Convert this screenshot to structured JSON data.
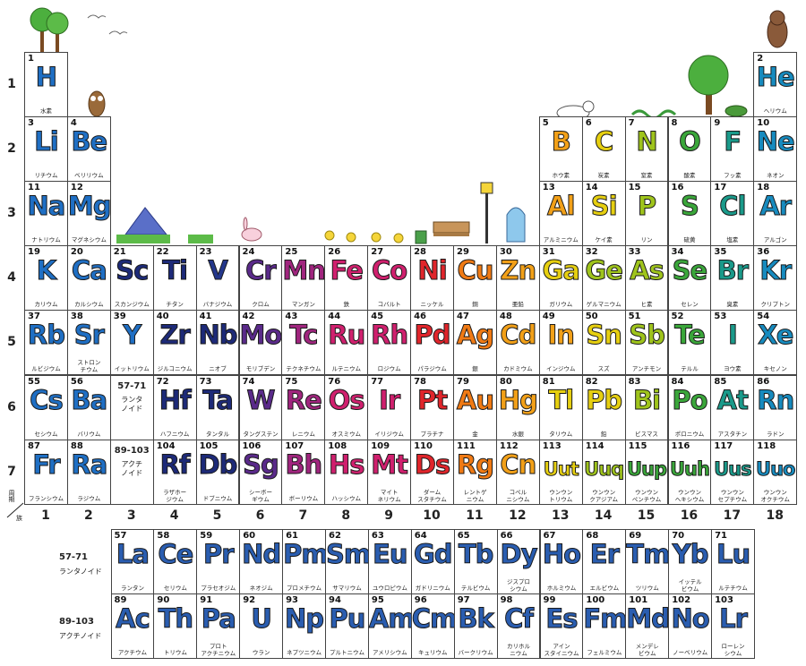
{
  "colors": {
    "blue": "#1f6fc4",
    "navy": "#1d2a78",
    "navy2": "#24378c",
    "purple": "#5a2a8a",
    "magenta": "#a0257e",
    "pink": "#d0206e",
    "red": "#e0252b",
    "orange": "#f07a14",
    "amber": "#f2a018",
    "yellow": "#e6cf10",
    "lime": "#9fc41c",
    "green": "#3aa63a",
    "teal": "#1a9a8a",
    "cyan": "#178bbf",
    "fblue": "#2a5db0",
    "border": "#444444"
  },
  "period_labels": [
    "1",
    "2",
    "3",
    "4",
    "5",
    "6",
    "7"
  ],
  "group_labels": [
    "1",
    "2",
    "3",
    "4",
    "5",
    "6",
    "7",
    "8",
    "9",
    "10",
    "11",
    "12",
    "13",
    "14",
    "15",
    "16",
    "17",
    "18"
  ],
  "corner": {
    "top": "周期",
    "bottom": "族"
  },
  "elements": [
    {
      "n": "1",
      "s": "H",
      "jp": "水素",
      "c": "blue",
      "p": 1,
      "g": 1
    },
    {
      "n": "2",
      "s": "He",
      "jp": "ヘリウム",
      "c": "cyan",
      "p": 1,
      "g": 18
    },
    {
      "n": "3",
      "s": "Li",
      "jp": "リチウム",
      "c": "blue",
      "p": 2,
      "g": 1
    },
    {
      "n": "4",
      "s": "Be",
      "jp": "ベリリウム",
      "c": "blue",
      "p": 2,
      "g": 2
    },
    {
      "n": "5",
      "s": "B",
      "jp": "ホウ素",
      "c": "amber",
      "p": 2,
      "g": 13
    },
    {
      "n": "6",
      "s": "C",
      "jp": "炭素",
      "c": "yellow",
      "p": 2,
      "g": 14
    },
    {
      "n": "7",
      "s": "N",
      "jp": "窒素",
      "c": "lime",
      "p": 2,
      "g": 15
    },
    {
      "n": "8",
      "s": "O",
      "jp": "酸素",
      "c": "green",
      "p": 2,
      "g": 16
    },
    {
      "n": "9",
      "s": "F",
      "jp": "フッ素",
      "c": "teal",
      "p": 2,
      "g": 17
    },
    {
      "n": "10",
      "s": "Ne",
      "jp": "ネオン",
      "c": "cyan",
      "p": 2,
      "g": 18
    },
    {
      "n": "11",
      "s": "Na",
      "jp": "ナトリウム",
      "c": "blue",
      "p": 3,
      "g": 1
    },
    {
      "n": "12",
      "s": "Mg",
      "jp": "マグネシウム",
      "c": "blue",
      "p": 3,
      "g": 2
    },
    {
      "n": "13",
      "s": "Al",
      "jp": "アルミニウム",
      "c": "amber",
      "p": 3,
      "g": 13
    },
    {
      "n": "14",
      "s": "Si",
      "jp": "ケイ素",
      "c": "yellow",
      "p": 3,
      "g": 14
    },
    {
      "n": "15",
      "s": "P",
      "jp": "リン",
      "c": "lime",
      "p": 3,
      "g": 15
    },
    {
      "n": "16",
      "s": "S",
      "jp": "硫黄",
      "c": "green",
      "p": 3,
      "g": 16
    },
    {
      "n": "17",
      "s": "Cl",
      "jp": "塩素",
      "c": "teal",
      "p": 3,
      "g": 17
    },
    {
      "n": "18",
      "s": "Ar",
      "jp": "アルゴン",
      "c": "cyan",
      "p": 3,
      "g": 18
    },
    {
      "n": "19",
      "s": "K",
      "jp": "カリウム",
      "c": "blue",
      "p": 4,
      "g": 1
    },
    {
      "n": "20",
      "s": "Ca",
      "jp": "カルシウム",
      "c": "blue",
      "p": 4,
      "g": 2
    },
    {
      "n": "21",
      "s": "Sc",
      "jp": "スカンジウム",
      "c": "navy",
      "p": 4,
      "g": 3
    },
    {
      "n": "22",
      "s": "Ti",
      "jp": "チタン",
      "c": "navy",
      "p": 4,
      "g": 4
    },
    {
      "n": "23",
      "s": "V",
      "jp": "バナジウム",
      "c": "navy2",
      "p": 4,
      "g": 5
    },
    {
      "n": "24",
      "s": "Cr",
      "jp": "クロム",
      "c": "purple",
      "p": 4,
      "g": 6
    },
    {
      "n": "25",
      "s": "Mn",
      "jp": "マンガン",
      "c": "magenta",
      "p": 4,
      "g": 7
    },
    {
      "n": "26",
      "s": "Fe",
      "jp": "鉄",
      "c": "pink",
      "p": 4,
      "g": 8
    },
    {
      "n": "27",
      "s": "Co",
      "jp": "コバルト",
      "c": "pink",
      "p": 4,
      "g": 9
    },
    {
      "n": "28",
      "s": "Ni",
      "jp": "ニッケル",
      "c": "red",
      "p": 4,
      "g": 10
    },
    {
      "n": "29",
      "s": "Cu",
      "jp": "銅",
      "c": "orange",
      "p": 4,
      "g": 11
    },
    {
      "n": "30",
      "s": "Zn",
      "jp": "亜鉛",
      "c": "amber",
      "p": 4,
      "g": 12
    },
    {
      "n": "31",
      "s": "Ga",
      "jp": "ガリウム",
      "c": "yellow",
      "p": 4,
      "g": 13
    },
    {
      "n": "32",
      "s": "Ge",
      "jp": "ゲルマニウム",
      "c": "lime",
      "p": 4,
      "g": 14
    },
    {
      "n": "33",
      "s": "As",
      "jp": "ヒ素",
      "c": "lime",
      "p": 4,
      "g": 15
    },
    {
      "n": "34",
      "s": "Se",
      "jp": "セレン",
      "c": "green",
      "p": 4,
      "g": 16
    },
    {
      "n": "35",
      "s": "Br",
      "jp": "臭素",
      "c": "teal",
      "p": 4,
      "g": 17
    },
    {
      "n": "36",
      "s": "Kr",
      "jp": "クリプトン",
      "c": "cyan",
      "p": 4,
      "g": 18
    },
    {
      "n": "37",
      "s": "Rb",
      "jp": "ルビジウム",
      "c": "blue",
      "p": 5,
      "g": 1
    },
    {
      "n": "38",
      "s": "Sr",
      "jp": "ストロン\nチウム",
      "c": "blue",
      "p": 5,
      "g": 2
    },
    {
      "n": "39",
      "s": "Y",
      "jp": "イットリウム",
      "c": "blue",
      "p": 5,
      "g": 3
    },
    {
      "n": "40",
      "s": "Zr",
      "jp": "ジルコニウム",
      "c": "navy",
      "p": 5,
      "g": 4
    },
    {
      "n": "41",
      "s": "Nb",
      "jp": "ニオブ",
      "c": "navy",
      "p": 5,
      "g": 5
    },
    {
      "n": "42",
      "s": "Mo",
      "jp": "モリブデン",
      "c": "purple",
      "p": 5,
      "g": 6
    },
    {
      "n": "43",
      "s": "Tc",
      "jp": "テクネチウム",
      "c": "magenta",
      "p": 5,
      "g": 7
    },
    {
      "n": "44",
      "s": "Ru",
      "jp": "ルテニウム",
      "c": "pink",
      "p": 5,
      "g": 8
    },
    {
      "n": "45",
      "s": "Rh",
      "jp": "ロジウム",
      "c": "pink",
      "p": 5,
      "g": 9
    },
    {
      "n": "46",
      "s": "Pd",
      "jp": "パラジウム",
      "c": "red",
      "p": 5,
      "g": 10
    },
    {
      "n": "47",
      "s": "Ag",
      "jp": "銀",
      "c": "orange",
      "p": 5,
      "g": 11
    },
    {
      "n": "48",
      "s": "Cd",
      "jp": "カドミウム",
      "c": "amber",
      "p": 5,
      "g": 12
    },
    {
      "n": "49",
      "s": "In",
      "jp": "インジウム",
      "c": "amber",
      "p": 5,
      "g": 13
    },
    {
      "n": "50",
      "s": "Sn",
      "jp": "スズ",
      "c": "yellow",
      "p": 5,
      "g": 14
    },
    {
      "n": "51",
      "s": "Sb",
      "jp": "アンチモン",
      "c": "lime",
      "p": 5,
      "g": 15
    },
    {
      "n": "52",
      "s": "Te",
      "jp": "テルル",
      "c": "green",
      "p": 5,
      "g": 16
    },
    {
      "n": "53",
      "s": "I",
      "jp": "ヨウ素",
      "c": "teal",
      "p": 5,
      "g": 17
    },
    {
      "n": "54",
      "s": "Xe",
      "jp": "キセノン",
      "c": "cyan",
      "p": 5,
      "g": 18
    },
    {
      "n": "55",
      "s": "Cs",
      "jp": "セシウム",
      "c": "blue",
      "p": 6,
      "g": 1
    },
    {
      "n": "56",
      "s": "Ba",
      "jp": "バリウム",
      "c": "blue",
      "p": 6,
      "g": 2
    },
    {
      "n": "72",
      "s": "Hf",
      "jp": "ハフニウム",
      "c": "navy",
      "p": 6,
      "g": 4
    },
    {
      "n": "73",
      "s": "Ta",
      "jp": "タンタル",
      "c": "navy",
      "p": 6,
      "g": 5
    },
    {
      "n": "74",
      "s": "W",
      "jp": "タングステン",
      "c": "purple",
      "p": 6,
      "g": 6
    },
    {
      "n": "75",
      "s": "Re",
      "jp": "レニウム",
      "c": "magenta",
      "p": 6,
      "g": 7
    },
    {
      "n": "76",
      "s": "Os",
      "jp": "オスミウム",
      "c": "pink",
      "p": 6,
      "g": 8
    },
    {
      "n": "77",
      "s": "Ir",
      "jp": "イリジウム",
      "c": "pink",
      "p": 6,
      "g": 9
    },
    {
      "n": "78",
      "s": "Pt",
      "jp": "プラチナ",
      "c": "red",
      "p": 6,
      "g": 10
    },
    {
      "n": "79",
      "s": "Au",
      "jp": "金",
      "c": "orange",
      "p": 6,
      "g": 11
    },
    {
      "n": "80",
      "s": "Hg",
      "jp": "水銀",
      "c": "amber",
      "p": 6,
      "g": 12
    },
    {
      "n": "81",
      "s": "Tl",
      "jp": "タリウム",
      "c": "yellow",
      "p": 6,
      "g": 13
    },
    {
      "n": "82",
      "s": "Pb",
      "jp": "鉛",
      "c": "yellow",
      "p": 6,
      "g": 14
    },
    {
      "n": "83",
      "s": "Bi",
      "jp": "ビスマス",
      "c": "lime",
      "p": 6,
      "g": 15
    },
    {
      "n": "84",
      "s": "Po",
      "jp": "ポロニウム",
      "c": "green",
      "p": 6,
      "g": 16
    },
    {
      "n": "85",
      "s": "At",
      "jp": "アスタチン",
      "c": "teal",
      "p": 6,
      "g": 17
    },
    {
      "n": "86",
      "s": "Rn",
      "jp": "ラドン",
      "c": "cyan",
      "p": 6,
      "g": 18
    },
    {
      "n": "87",
      "s": "Fr",
      "jp": "フランシウム",
      "c": "blue",
      "p": 7,
      "g": 1
    },
    {
      "n": "88",
      "s": "Ra",
      "jp": "ラジウム",
      "c": "blue",
      "p": 7,
      "g": 2
    },
    {
      "n": "104",
      "s": "Rf",
      "jp": "ラザホー\nジウム",
      "c": "navy",
      "p": 7,
      "g": 4
    },
    {
      "n": "105",
      "s": "Db",
      "jp": "ドブニウム",
      "c": "navy",
      "p": 7,
      "g": 5
    },
    {
      "n": "106",
      "s": "Sg",
      "jp": "シーボー\nギウム",
      "c": "purple",
      "p": 7,
      "g": 6
    },
    {
      "n": "107",
      "s": "Bh",
      "jp": "ボーリウム",
      "c": "magenta",
      "p": 7,
      "g": 7
    },
    {
      "n": "108",
      "s": "Hs",
      "jp": "ハッシウム",
      "c": "pink",
      "p": 7,
      "g": 8
    },
    {
      "n": "109",
      "s": "Mt",
      "jp": "マイト\nネリウム",
      "c": "pink",
      "p": 7,
      "g": 9
    },
    {
      "n": "110",
      "s": "Ds",
      "jp": "ダーム\nスタチウム",
      "c": "red",
      "p": 7,
      "g": 10
    },
    {
      "n": "111",
      "s": "Rg",
      "jp": "レントゲ\nニウム",
      "c": "orange",
      "p": 7,
      "g": 11
    },
    {
      "n": "112",
      "s": "Cn",
      "jp": "コペル\nニシウム",
      "c": "amber",
      "p": 7,
      "g": 12
    },
    {
      "n": "113",
      "s": "Uut",
      "jp": "ウンウン\nトリウム",
      "c": "yellow",
      "p": 7,
      "g": 13
    },
    {
      "n": "114",
      "s": "Uuq",
      "jp": "ウンウン\nクアジアム",
      "c": "lime",
      "p": 7,
      "g": 14
    },
    {
      "n": "115",
      "s": "Uup",
      "jp": "ウンウン\nペンチウム",
      "c": "green",
      "p": 7,
      "g": 15
    },
    {
      "n": "116",
      "s": "Uuh",
      "jp": "ウンウン\nヘキシウム",
      "c": "green",
      "p": 7,
      "g": 16
    },
    {
      "n": "117",
      "s": "Uus",
      "jp": "ウンウン\nセプチウム",
      "c": "teal",
      "p": 7,
      "g": 17
    },
    {
      "n": "118",
      "s": "Uuo",
      "jp": "ウンウン\nオクチウム",
      "c": "cyan",
      "p": 7,
      "g": 18
    }
  ],
  "refs": [
    {
      "range": "57-71",
      "name": "ランタ\nノイド",
      "p": 6,
      "g": 3
    },
    {
      "range": "89-103",
      "name": "アクチ\nノイド",
      "p": 7,
      "g": 3
    }
  ],
  "series": [
    {
      "range": "57-71",
      "name": "ランタノイド",
      "elements": [
        {
          "n": "57",
          "s": "La",
          "jp": "ランタン"
        },
        {
          "n": "58",
          "s": "Ce",
          "jp": "セリウム"
        },
        {
          "n": "59",
          "s": "Pr",
          "jp": "プラセオジム"
        },
        {
          "n": "60",
          "s": "Nd",
          "jp": "ネオジム"
        },
        {
          "n": "61",
          "s": "Pm",
          "jp": "プロメチウム"
        },
        {
          "n": "62",
          "s": "Sm",
          "jp": "サマリウム"
        },
        {
          "n": "63",
          "s": "Eu",
          "jp": "ユウロピウム"
        },
        {
          "n": "64",
          "s": "Gd",
          "jp": "ガドリニウム"
        },
        {
          "n": "65",
          "s": "Tb",
          "jp": "テルビウム"
        },
        {
          "n": "66",
          "s": "Dy",
          "jp": "ジスプロ\nシウム"
        },
        {
          "n": "67",
          "s": "Ho",
          "jp": "ホルミウム"
        },
        {
          "n": "68",
          "s": "Er",
          "jp": "エルビウム"
        },
        {
          "n": "69",
          "s": "Tm",
          "jp": "ツリウム"
        },
        {
          "n": "70",
          "s": "Yb",
          "jp": "イッテル\nビウム"
        },
        {
          "n": "71",
          "s": "Lu",
          "jp": "ルテチウム"
        }
      ]
    },
    {
      "range": "89-103",
      "name": "アクチノイド",
      "elements": [
        {
          "n": "89",
          "s": "Ac",
          "jp": "アクチウム"
        },
        {
          "n": "90",
          "s": "Th",
          "jp": "トリウム"
        },
        {
          "n": "91",
          "s": "Pa",
          "jp": "プロト\nアクチニウム"
        },
        {
          "n": "92",
          "s": "U",
          "jp": "ウラン"
        },
        {
          "n": "93",
          "s": "Np",
          "jp": "ネプツニウム"
        },
        {
          "n": "94",
          "s": "Pu",
          "jp": "プルトニウム"
        },
        {
          "n": "95",
          "s": "Am",
          "jp": "アメリシウム"
        },
        {
          "n": "96",
          "s": "Cm",
          "jp": "キュリウム"
        },
        {
          "n": "97",
          "s": "Bk",
          "jp": "バークリウム"
        },
        {
          "n": "98",
          "s": "Cf",
          "jp": "カリホル\nニウム"
        },
        {
          "n": "99",
          "s": "Es",
          "jp": "アイン\nスタイニウム"
        },
        {
          "n": "100",
          "s": "Fm",
          "jp": "フェルミウム"
        },
        {
          "n": "101",
          "s": "Md",
          "jp": "メンデレ\nビウム"
        },
        {
          "n": "102",
          "s": "No",
          "jp": "ノーベリウム"
        },
        {
          "n": "103",
          "s": "Lr",
          "jp": "ローレン\nシウム"
        }
      ]
    }
  ],
  "series_color": "fblue"
}
